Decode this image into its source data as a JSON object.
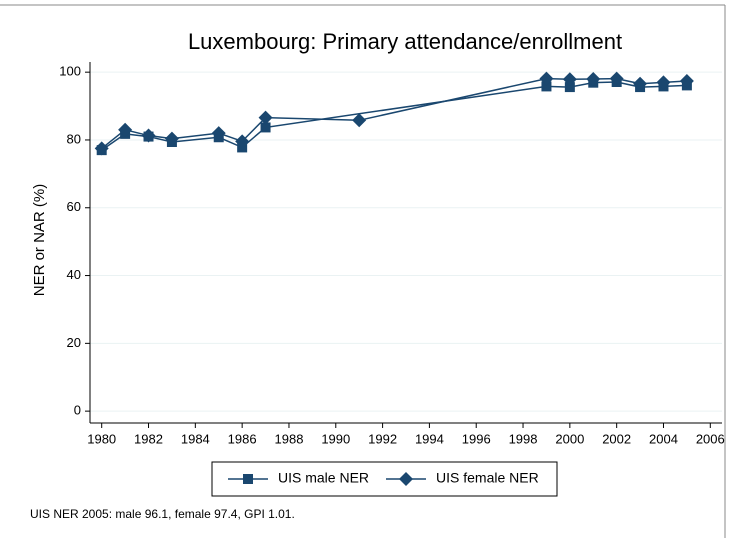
{
  "chart_data": {
    "type": "line",
    "title": "Luxembourg: Primary attendance/enrollment",
    "y_label": "NER or NAR (%)",
    "note": "UIS NER 2005: male 96.1, female 97.4, GPI 1.01.",
    "xlim": [
      1979.5,
      2006.5
    ],
    "xticks": [
      1980,
      1982,
      1984,
      1986,
      1988,
      1990,
      1992,
      1994,
      1996,
      1998,
      2000,
      2002,
      2004,
      2006
    ],
    "ylim": [
      -3.5,
      103
    ],
    "yticks": [
      0,
      20,
      40,
      60,
      80,
      100
    ],
    "grid": true,
    "series": [
      {
        "name": "UIS male NER",
        "color": "#1a476f",
        "marker": "square",
        "x": [
          1980,
          1981,
          1982,
          1983,
          1985,
          1986,
          1987,
          1999,
          2000,
          2001,
          2002,
          2003,
          2004,
          2005
        ],
        "values": [
          77.0,
          81.8,
          81.0,
          79.4,
          80.8,
          77.8,
          83.7,
          95.8,
          95.6,
          96.9,
          97.1,
          95.6,
          95.8,
          96.1
        ]
      },
      {
        "name": "UIS female NER",
        "color": "#1a476f",
        "marker": "diamond",
        "x": [
          1980,
          1981,
          1982,
          1983,
          1985,
          1986,
          1987,
          1991,
          1999,
          2000,
          2001,
          2002,
          2003,
          2004,
          2005
        ],
        "values": [
          77.5,
          83.0,
          81.3,
          80.4,
          82.0,
          79.6,
          86.6,
          85.8,
          98.1,
          97.9,
          98.0,
          98.1,
          96.6,
          97.0,
          97.4
        ]
      }
    ]
  }
}
